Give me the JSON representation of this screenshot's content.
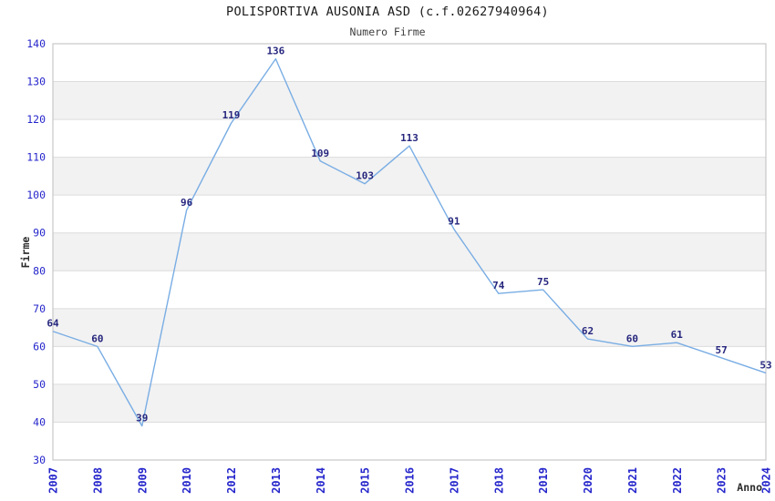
{
  "header": {
    "title": "POLISPORTIVA AUSONIA ASD (c.f.02627940964)",
    "subtitle": "Numero Firme"
  },
  "chart_data": {
    "type": "line",
    "title": "POLISPORTIVA AUSONIA ASD (c.f.02627940964)",
    "subtitle": "Numero Firme",
    "xlabel": "Anno",
    "ylabel": "Firme",
    "x": [
      2007,
      2008,
      2009,
      2010,
      2012,
      2013,
      2014,
      2015,
      2016,
      2017,
      2018,
      2019,
      2020,
      2021,
      2022,
      2023,
      2024
    ],
    "values": [
      64,
      60,
      39,
      96,
      119,
      136,
      109,
      103,
      113,
      91,
      74,
      75,
      62,
      60,
      61,
      57,
      53
    ],
    "ylim": [
      30,
      140
    ],
    "ytick_step": 10,
    "grid": "horizontal",
    "alternating_bands": true,
    "legend": "none",
    "data_labels_shown": true,
    "x_tick_rotation": -90,
    "colors": {
      "line": "#79ade4",
      "data_label": "#26267e",
      "tick_label": "#2626cc",
      "title": "#1a1a1a",
      "subtitle": "#3f3f3f",
      "axis_label": "#2b2b2b",
      "band": "#f2f2f2",
      "gridline": "#dcdcdc",
      "border": "#c8c8c8",
      "background": "#ffffff"
    }
  }
}
